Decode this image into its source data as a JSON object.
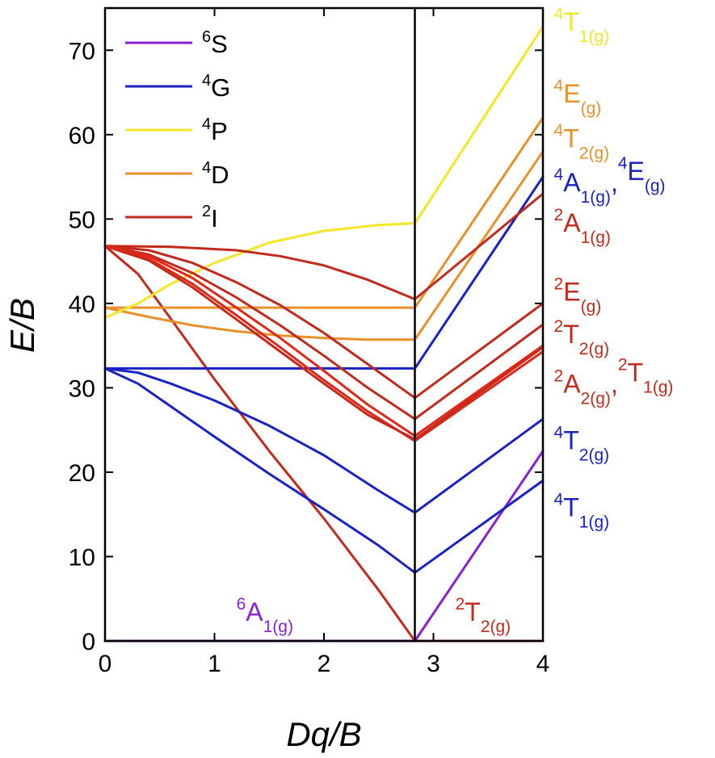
{
  "chart_data": {
    "type": "line",
    "title": "",
    "xlabel": "Dq/B",
    "ylabel": "E/B",
    "xlim": [
      0,
      4
    ],
    "ylim": [
      0,
      75
    ],
    "xticks": [
      0,
      1,
      2,
      3,
      4
    ],
    "yticks": [
      0,
      10,
      20,
      30,
      40,
      50,
      60,
      70
    ],
    "grid": false,
    "legend_position": "top-left",
    "colors": {
      "S": "#8b1fd8",
      "G": "#1a22c4",
      "P": "#f5e627",
      "D": "#e8902a",
      "I": "#c22a1c"
    },
    "legend": [
      {
        "sup": "6",
        "base": "S",
        "color": "#8b1fd8"
      },
      {
        "sup": "4",
        "base": "G",
        "color": "#1a22c4"
      },
      {
        "sup": "4",
        "base": "P",
        "color": "#f5e627"
      },
      {
        "sup": "4",
        "base": "D",
        "color": "#e8902a"
      },
      {
        "sup": "2",
        "base": "I",
        "color": "#c22a1c"
      }
    ],
    "crossover_x": 2.83,
    "series": [
      {
        "color": "#8b1fd8",
        "width": 3,
        "x": [
          0,
          2.83
        ],
        "y": [
          0,
          0
        ]
      },
      {
        "color": "#8b1fd8",
        "width": 3,
        "x": [
          2.83,
          4
        ],
        "y": [
          0,
          22.5
        ]
      },
      {
        "color": "#c22a1c",
        "width": 3,
        "x": [
          0,
          0.3,
          0.6,
          1.0,
          1.5,
          2.0,
          2.5,
          2.83
        ],
        "y": [
          46.8,
          43.5,
          38.2,
          31.0,
          22.5,
          14.5,
          6.0,
          0
        ]
      },
      {
        "color": "#c22a1c",
        "width": 3,
        "x": [
          2.83,
          4
        ],
        "y": [
          0,
          0
        ]
      },
      {
        "color": "#1a22c4",
        "width": 3,
        "x": [
          0,
          0.3,
          0.6,
          1.0,
          1.5,
          2.0,
          2.5,
          2.83
        ],
        "y": [
          32.3,
          30.5,
          27.8,
          24.2,
          19.8,
          15.6,
          11.3,
          8.1
        ]
      },
      {
        "color": "#1a22c4",
        "width": 3,
        "x": [
          2.83,
          4
        ],
        "y": [
          8.1,
          19.0
        ]
      },
      {
        "color": "#1a22c4",
        "width": 3,
        "x": [
          0,
          0.3,
          0.6,
          1.0,
          1.5,
          2.0,
          2.5,
          2.83
        ],
        "y": [
          32.3,
          31.8,
          30.5,
          28.5,
          25.5,
          22.0,
          17.8,
          15.2
        ]
      },
      {
        "color": "#1a22c4",
        "width": 3,
        "x": [
          2.83,
          4
        ],
        "y": [
          15.2,
          26.3
        ]
      },
      {
        "color": "#1a22c4",
        "width": 3,
        "x": [
          0,
          2.83
        ],
        "y": [
          32.3,
          32.3
        ]
      },
      {
        "color": "#1a22c4",
        "width": 3,
        "x": [
          2.83,
          4
        ],
        "y": [
          32.3,
          55.0
        ]
      },
      {
        "color": "#e8902a",
        "width": 3,
        "x": [
          0,
          0.4,
          0.8,
          1.2,
          1.6,
          2.0,
          2.4,
          2.83
        ],
        "y": [
          39.5,
          38.4,
          37.4,
          36.7,
          36.2,
          35.9,
          35.7,
          35.7
        ]
      },
      {
        "color": "#e8902a",
        "width": 3,
        "x": [
          2.83,
          4
        ],
        "y": [
          35.7,
          58.0
        ]
      },
      {
        "color": "#e8902a",
        "width": 3,
        "x": [
          0,
          2.83
        ],
        "y": [
          39.5,
          39.5
        ]
      },
      {
        "color": "#e8902a",
        "width": 3,
        "x": [
          2.83,
          4
        ],
        "y": [
          39.5,
          62.0
        ]
      },
      {
        "color": "#f5e627",
        "width": 3,
        "x": [
          0,
          0.3,
          0.6,
          1.0,
          1.5,
          2.0,
          2.5,
          2.83
        ],
        "y": [
          38.3,
          40.0,
          42.3,
          44.8,
          47.2,
          48.6,
          49.3,
          49.5
        ]
      },
      {
        "color": "#f5e627",
        "width": 3,
        "x": [
          2.83,
          4
        ],
        "y": [
          49.5,
          72.8
        ]
      },
      {
        "color": "#c22a1c",
        "width": 3,
        "x": [
          0,
          0.6,
          1.2,
          1.6,
          2.0,
          2.4,
          2.83
        ],
        "y": [
          46.8,
          46.7,
          46.3,
          45.6,
          44.5,
          42.8,
          40.5
        ]
      },
      {
        "color": "#c22a1c",
        "width": 3,
        "x": [
          2.83,
          4
        ],
        "y": [
          40.5,
          53.0
        ]
      },
      {
        "color": "#c22a1c",
        "width": 3,
        "x": [
          0,
          0.4,
          0.8,
          1.2,
          1.6,
          2.0,
          2.4,
          2.83
        ],
        "y": [
          46.8,
          46.3,
          44.8,
          42.5,
          39.8,
          36.5,
          32.8,
          28.8
        ]
      },
      {
        "color": "#c22a1c",
        "width": 3,
        "x": [
          2.83,
          4
        ],
        "y": [
          28.8,
          40.0
        ]
      },
      {
        "color": "#c22a1c",
        "width": 3,
        "x": [
          0,
          0.4,
          0.8,
          1.2,
          1.6,
          2.0,
          2.4,
          2.83
        ],
        "y": [
          46.8,
          45.8,
          43.6,
          40.7,
          37.4,
          33.8,
          30.0,
          26.3
        ]
      },
      {
        "color": "#c22a1c",
        "width": 3,
        "x": [
          2.83,
          4
        ],
        "y": [
          26.3,
          37.5
        ]
      },
      {
        "color": "#e0281a",
        "width": 3,
        "x": [
          0,
          0.4,
          0.8,
          1.2,
          1.6,
          2.0,
          2.4,
          2.83
        ],
        "y": [
          46.8,
          45.3,
          42.3,
          38.6,
          34.8,
          30.9,
          27.2,
          23.7
        ]
      },
      {
        "color": "#e0281a",
        "width": 3,
        "x": [
          2.83,
          4
        ],
        "y": [
          23.7,
          34.3
        ]
      },
      {
        "color": "#c22a1c",
        "width": 3,
        "x": [
          0,
          0.4,
          0.8,
          1.2,
          1.6,
          2.0,
          2.4,
          2.83
        ],
        "y": [
          46.8,
          45.1,
          41.9,
          38.1,
          34.3,
          30.5,
          26.8,
          23.9
        ]
      },
      {
        "color": "#c22a1c",
        "width": 3,
        "x": [
          2.83,
          4
        ],
        "y": [
          23.9,
          34.8
        ]
      },
      {
        "color": "#e0281a",
        "width": 3,
        "x": [
          0,
          0.4,
          0.8,
          1.2,
          1.6,
          2.0,
          2.4,
          2.83
        ],
        "y": [
          46.8,
          45.6,
          43.0,
          39.5,
          35.9,
          32.0,
          28.0,
          24.3
        ]
      },
      {
        "color": "#e0281a",
        "width": 3,
        "x": [
          2.83,
          4
        ],
        "y": [
          24.3,
          35.0
        ]
      },
      {
        "color": "#000000",
        "width": 2.5,
        "x": [
          2.83,
          2.83
        ],
        "y": [
          0,
          75
        ]
      }
    ],
    "annotations": [
      {
        "sup": "4",
        "base": "T",
        "sub": "1(g)",
        "color": "#f5e627",
        "x": 4.1,
        "y": 72.3
      },
      {
        "sup": "4",
        "base": "E",
        "sub": "(g)",
        "color": "#e8902a",
        "x": 4.1,
        "y": 63.8
      },
      {
        "sup": "4",
        "base": "T",
        "sub": "2(g)",
        "color": "#e8902a",
        "x": 4.1,
        "y": 58.5
      },
      {
        "sup": "4",
        "base": "A",
        "sub": "1(g)",
        "color": "#1a22c4",
        "x": 4.1,
        "y": 53.3,
        "extra_sup": "4",
        "extra_base": "E",
        "extra_sub": "(g)"
      },
      {
        "sup": "2",
        "base": "A",
        "sub": "1(g)",
        "color": "#c22a1c",
        "x": 4.1,
        "y": 48.5
      },
      {
        "sup": "2",
        "base": "E",
        "sub": "(g)",
        "color": "#c22a1c",
        "x": 4.1,
        "y": 40.3
      },
      {
        "sup": "2",
        "base": "T",
        "sub": "2(g)",
        "color": "#c22a1c",
        "x": 4.1,
        "y": 35.3
      },
      {
        "sup": "2",
        "base": "A",
        "sub": "2(g)",
        "color": "#c22a1c",
        "x": 4.1,
        "y": 29.4,
        "extra_sup": "2",
        "extra_base": "T",
        "extra_sub": "1(g)"
      },
      {
        "sup": "4",
        "base": "T",
        "sub": "2(g)",
        "color": "#1a22c4",
        "x": 4.1,
        "y": 22.7
      },
      {
        "sup": "4",
        "base": "T",
        "sub": "1(g)",
        "color": "#1a22c4",
        "x": 4.1,
        "y": 14.8
      },
      {
        "sup": "6",
        "base": "A",
        "sub": "1(g)",
        "color": "#8b1fd8",
        "x": 1.2,
        "y": 2.4
      },
      {
        "sup": "2",
        "base": "T",
        "sub": "2(g)",
        "color": "#c22a1c",
        "x": 3.2,
        "y": 2.4
      }
    ]
  }
}
